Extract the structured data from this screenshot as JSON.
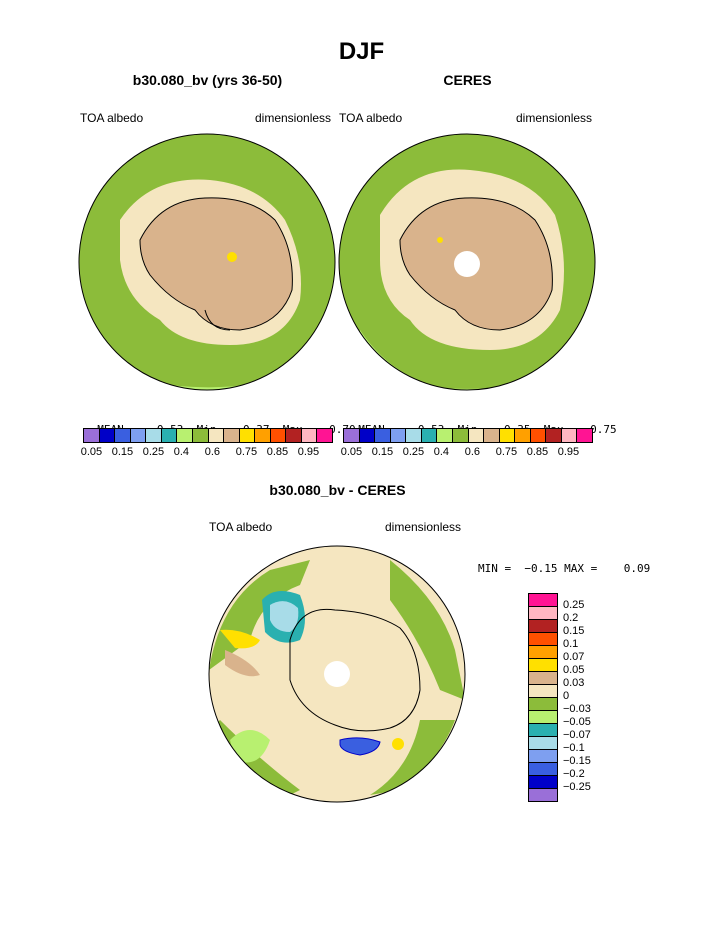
{
  "title": "DJF",
  "panels": [
    {
      "subtitle": "b30.080_bv (yrs 36-50)",
      "left_label": "TOA albedo",
      "right_label": "dimensionless",
      "stats": {
        "mean_label": "MEAN=",
        "mean": "0.53",
        "min_label": "Min=",
        "min": "0.37",
        "max_label": "Max=",
        "max": "0.70"
      }
    },
    {
      "subtitle": "CERES",
      "left_label": "TOA albedo",
      "right_label": "dimensionless",
      "stats": {
        "mean_label": "MEAN=",
        "mean": "0.53",
        "min_label": "Min=",
        "min": "0.35",
        "max_label": "Max=",
        "max": "0.75"
      }
    },
    {
      "subtitle": "b30.080_bv - CERES",
      "left_label": "TOA albedo",
      "right_label": "dimensionless",
      "minmax": "MIN =  −0.15 MAX =    0.09"
    }
  ],
  "colorbar_top": {
    "colors": [
      "#9a6fd8",
      "#0000c8",
      "#3a5fe0",
      "#7e9ff0",
      "#a8dce8",
      "#2ab0b0",
      "#b8f070",
      "#8cbc3a",
      "#f5e6c0",
      "#d9b38c",
      "#ffe000",
      "#ffa000",
      "#ff5000",
      "#b22222",
      "#ffb6c1",
      "#ff1493"
    ],
    "labels": [
      "0.05",
      "0.15",
      "0.25",
      "0.4",
      "0.6",
      "0.75",
      "0.85",
      "0.95"
    ]
  },
  "colorbar_diff": {
    "colors": [
      "#ff1493",
      "#ffb6c1",
      "#b22222",
      "#ff5000",
      "#ffa000",
      "#ffe000",
      "#d9b38c",
      "#f5e6c0",
      "#8cbc3a",
      "#b8f070",
      "#2ab0b0",
      "#a8dce8",
      "#7e9ff0",
      "#3a5fe0",
      "#0000c8",
      "#9a6fd8"
    ],
    "labels": [
      "0.25",
      "0.2",
      "0.15",
      "0.1",
      "0.07",
      "0.05",
      "0.03",
      "0",
      "−0.03",
      "−0.05",
      "−0.07",
      "−0.1",
      "−0.15",
      "−0.2",
      "−0.25"
    ]
  }
}
